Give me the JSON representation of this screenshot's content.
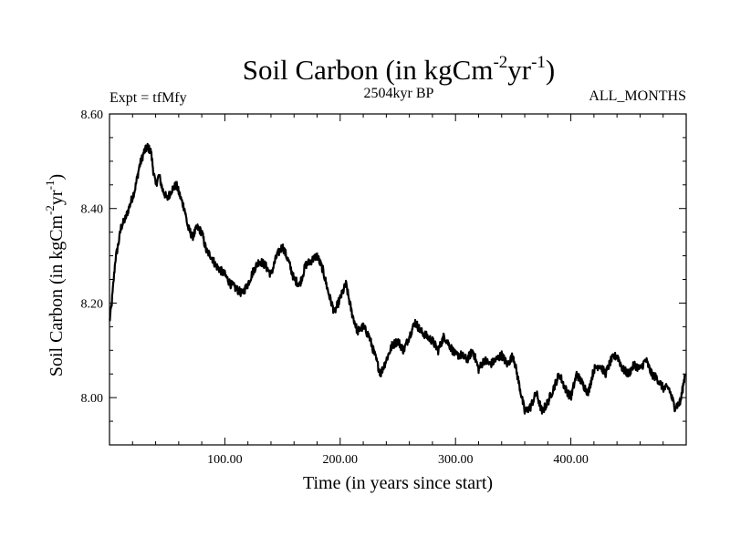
{
  "chart_data": {
    "type": "line",
    "title_main": "Soil Carbon (in kgCm",
    "title_exp1": "-2",
    "title_mid": "yr",
    "title_exp2": "-1",
    "title_end": ")",
    "expt_label": "Expt = tfMfy",
    "period_label": "2504kyr BP",
    "months_label": "ALL_MONTHS",
    "xlabel": "Time (in years since start)",
    "ylabel_main": "Soil Carbon (in kgCm",
    "ylabel_exp1": "-2",
    "ylabel_mid": "yr",
    "ylabel_exp2": "-1",
    "ylabel_end": ")",
    "xlim": [
      0,
      500
    ],
    "ylim": [
      7.9,
      8.6
    ],
    "x_ticks": [
      100,
      200,
      300,
      400
    ],
    "x_tick_labels": [
      "100.00",
      "200.00",
      "300.00",
      "400.00"
    ],
    "y_ticks": [
      8.0,
      8.2,
      8.4,
      8.6
    ],
    "y_tick_labels": [
      "8.00",
      "8.20",
      "8.40",
      "8.60"
    ],
    "series": [
      {
        "name": "Soil Carbon",
        "x": [
          0,
          2,
          5,
          8,
          10,
          14,
          18,
          22,
          26,
          30,
          33,
          36,
          38,
          40,
          43,
          46,
          50,
          54,
          58,
          62,
          65,
          68,
          72,
          76,
          80,
          84,
          88,
          92,
          96,
          100,
          105,
          110,
          115,
          120,
          125,
          130,
          135,
          140,
          145,
          150,
          155,
          160,
          165,
          170,
          175,
          180,
          185,
          190,
          195,
          200,
          205,
          210,
          215,
          220,
          225,
          230,
          235,
          240,
          245,
          250,
          255,
          260,
          265,
          270,
          275,
          280,
          285,
          290,
          295,
          300,
          305,
          310,
          315,
          320,
          325,
          330,
          335,
          340,
          345,
          350,
          355,
          360,
          365,
          370,
          375,
          380,
          385,
          390,
          395,
          400,
          405,
          410,
          415,
          420,
          425,
          430,
          435,
          440,
          445,
          450,
          455,
          460,
          465,
          470,
          475,
          480,
          485,
          490,
          495,
          499
        ],
        "values": [
          8.16,
          8.2,
          8.29,
          8.33,
          8.36,
          8.38,
          8.41,
          8.44,
          8.49,
          8.52,
          8.53,
          8.52,
          8.48,
          8.45,
          8.47,
          8.44,
          8.42,
          8.44,
          8.45,
          8.42,
          8.4,
          8.36,
          8.34,
          8.36,
          8.35,
          8.31,
          8.3,
          8.28,
          8.27,
          8.26,
          8.24,
          8.23,
          8.22,
          8.24,
          8.27,
          8.29,
          8.28,
          8.26,
          8.3,
          8.32,
          8.29,
          8.25,
          8.24,
          8.28,
          8.29,
          8.3,
          8.27,
          8.22,
          8.18,
          8.21,
          8.24,
          8.18,
          8.14,
          8.15,
          8.13,
          8.09,
          8.05,
          8.08,
          8.11,
          8.12,
          8.1,
          8.13,
          8.16,
          8.14,
          8.13,
          8.12,
          8.1,
          8.13,
          8.11,
          8.09,
          8.09,
          8.08,
          8.1,
          8.06,
          8.08,
          8.07,
          8.08,
          8.09,
          8.07,
          8.09,
          8.03,
          7.97,
          7.98,
          8.01,
          7.97,
          7.99,
          8.02,
          8.05,
          8.02,
          8.0,
          8.05,
          8.03,
          8.01,
          8.06,
          8.07,
          8.05,
          8.08,
          8.09,
          8.06,
          8.05,
          8.07,
          8.06,
          8.08,
          8.05,
          8.04,
          8.02,
          8.02,
          7.98,
          7.99,
          8.05
        ]
      }
    ]
  }
}
